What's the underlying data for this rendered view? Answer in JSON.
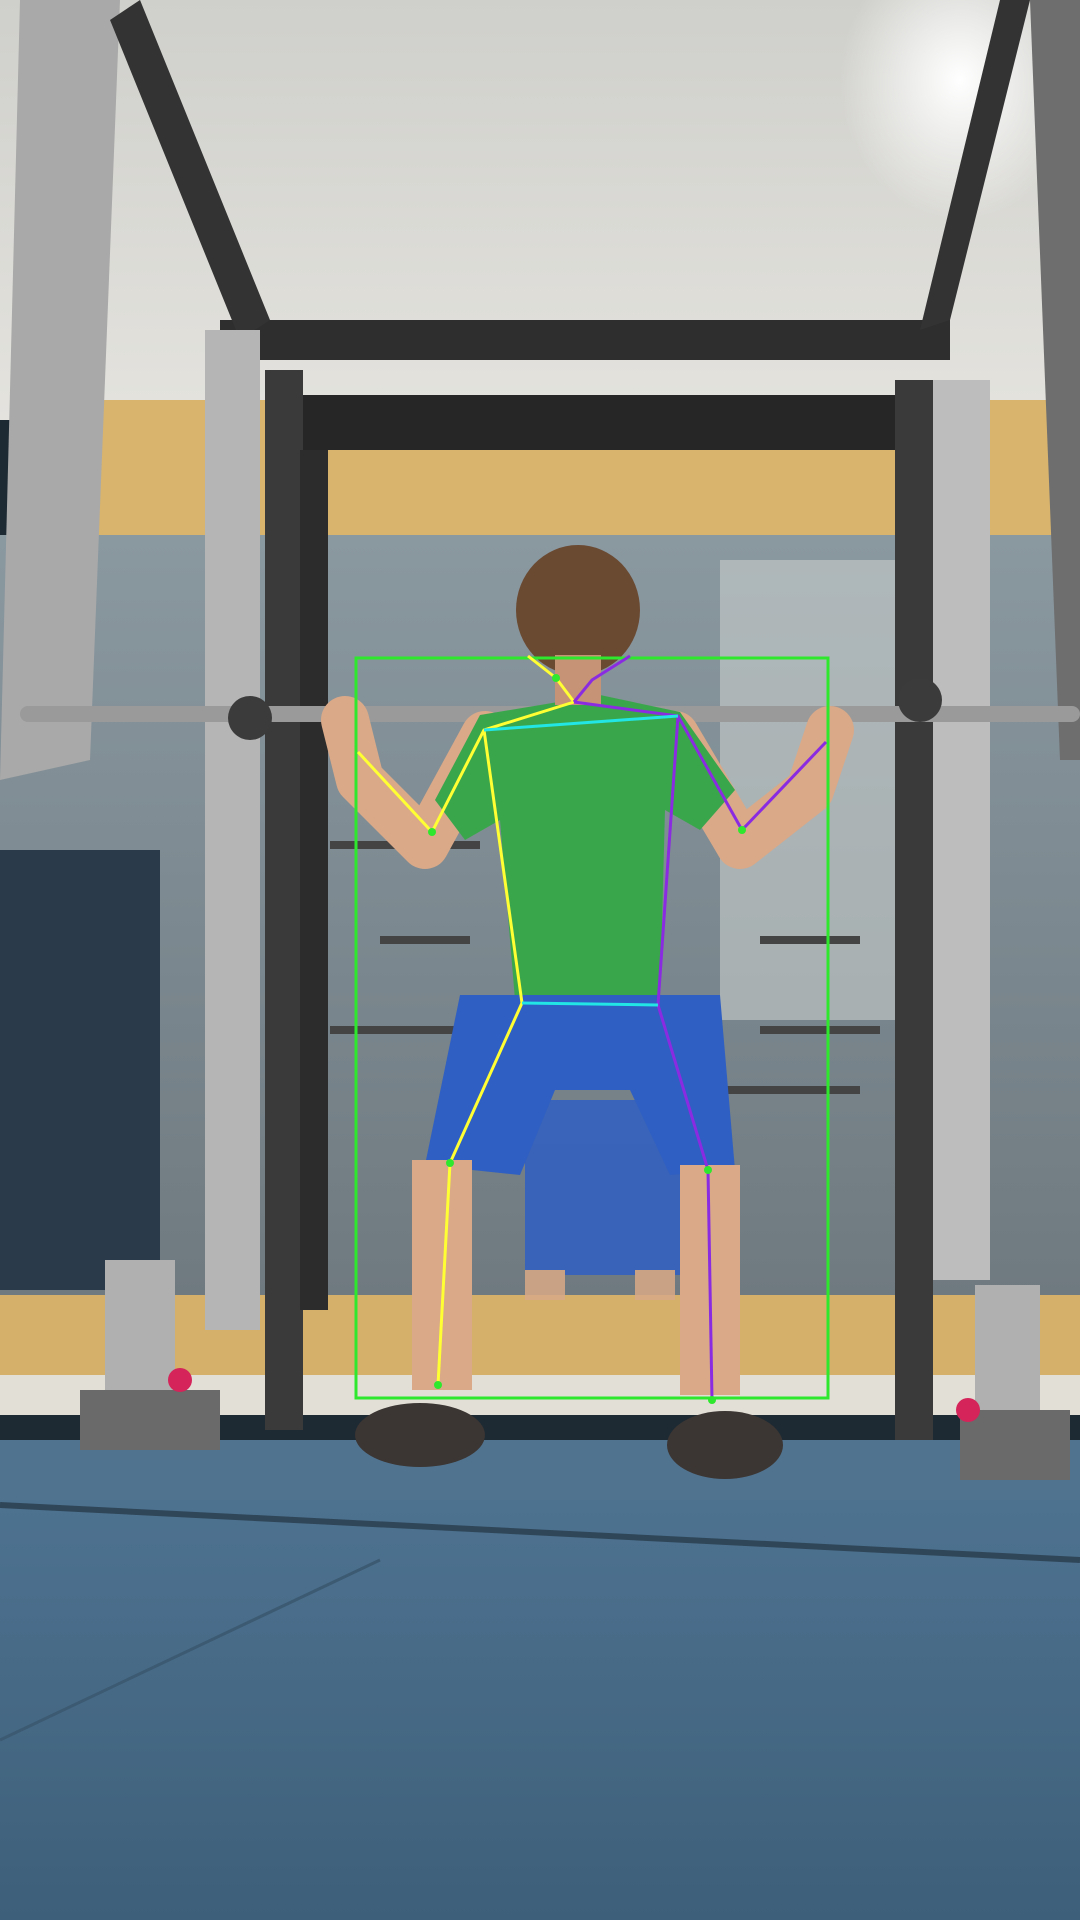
{
  "scene": {
    "description_type": "gym squat rack photo with pose-estimation overlay",
    "colors": {
      "ceiling": "#d9d9d4",
      "wall_band": "#d9b56e",
      "mirror": "#8f9ca3",
      "floor": "#486a84",
      "rack_frame": "#3a3a3a",
      "rack_upright": "#b8b8b8",
      "bbox": "#2ee82e",
      "limb_left": "#ffff33",
      "limb_right": "#8a2be2",
      "limb_center": "#22e5e5",
      "shirt": "#3aa64c",
      "shorts": "#2f5fc2",
      "skin": "#d9a988",
      "hair": "#6b4a32",
      "shoe": "#3b3533"
    }
  }
}
